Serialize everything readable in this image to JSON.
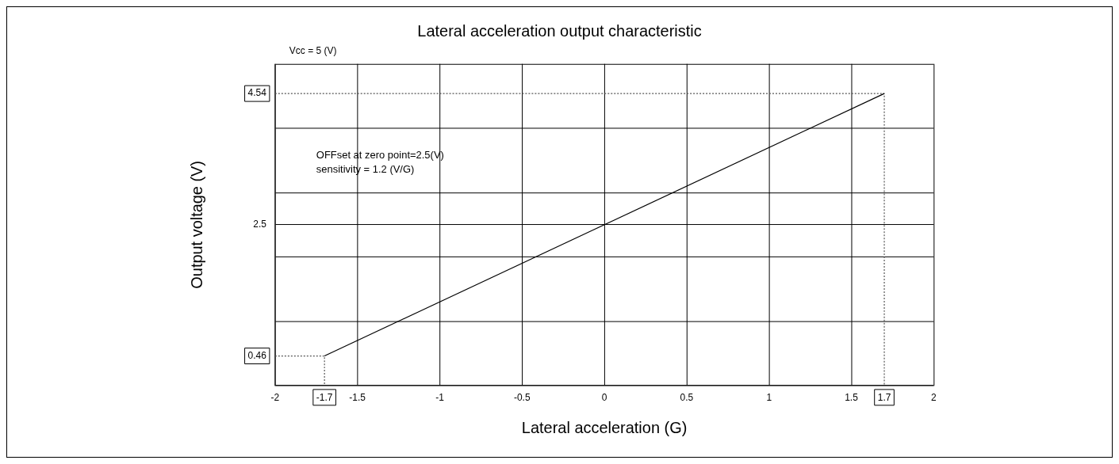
{
  "chart_data": {
    "type": "line",
    "title": "Lateral acceleration output characteristic",
    "xlabel": "Lateral acceleration (G)",
    "ylabel": "Output voltage (V)",
    "x": [
      -1.7,
      1.7
    ],
    "series": [
      {
        "color": "#000000",
        "values": [
          0.46,
          4.54
        ]
      },
      {
        "color": "#555555",
        "line_style": "dotted",
        "x": [
          -2,
          -1.7,
          -1.7
        ],
        "values": [
          0.46,
          0.46,
          0
        ]
      },
      {
        "color": "#555555",
        "line_style": "dotted",
        "x": [
          -2,
          1.7,
          1.7
        ],
        "values": [
          4.54,
          4.54,
          0
        ]
      }
    ],
    "xlim": [
      -2,
      2
    ],
    "xticks": [
      -2,
      -1.7,
      -1.5,
      -1,
      -0.5,
      0,
      0.5,
      1,
      1.5,
      1.7,
      2
    ],
    "ylim": [
      0,
      5
    ],
    "yticks": [
      {
        "value": 0,
        "label": null
      },
      0.46,
      {
        "value": 1,
        "label": null
      },
      {
        "value": 2,
        "label": null
      },
      2.5,
      {
        "value": 3,
        "label": null
      },
      {
        "value": 4,
        "label": null
      },
      4.54,
      {
        "value": 5,
        "label": null
      }
    ],
    "grid": true,
    "marker": "none",
    "annotations": [
      "Vcc = 5 (V)",
      "OFFset at zero point=2.5(V)",
      "sensitivity = 1.2 (V/G)"
    ]
  }
}
